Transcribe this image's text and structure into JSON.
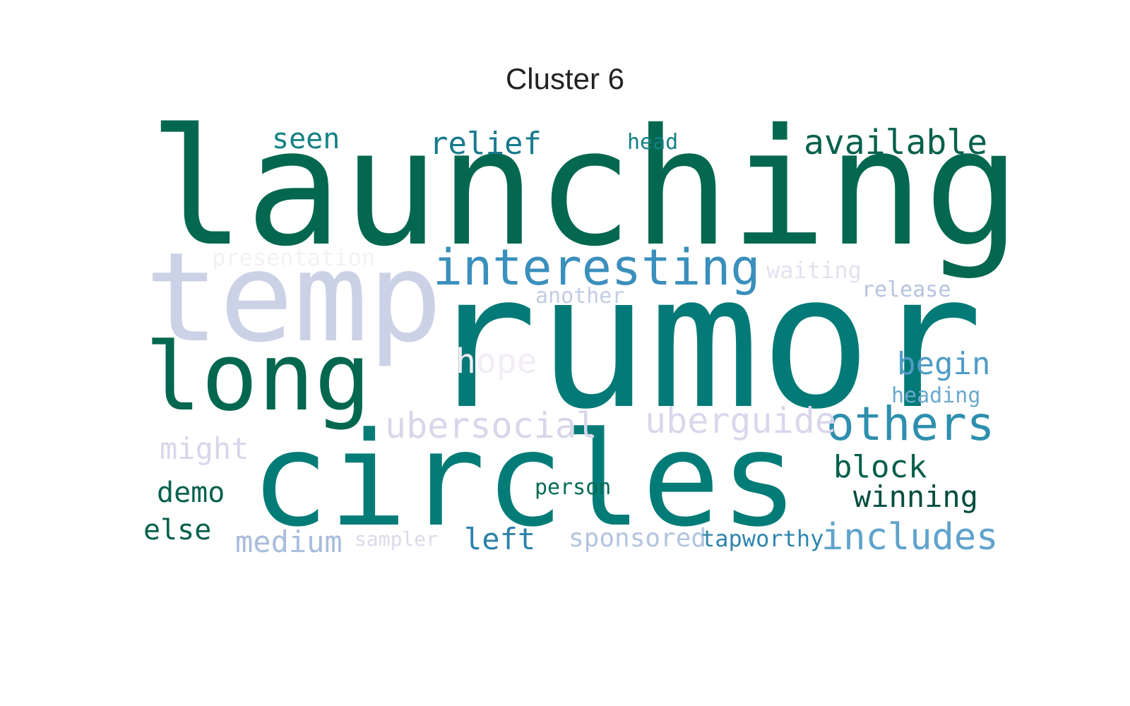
{
  "chart_data": {
    "type": "wordcloud",
    "title": "Cluster 6",
    "words": [
      {
        "text": "launching",
        "weight": 100,
        "color": "#03684f"
      },
      {
        "text": "rumor",
        "weight": 98,
        "color": "#037a77"
      },
      {
        "text": "circles",
        "weight": 80,
        "color": "#037c78"
      },
      {
        "text": "temp",
        "weight": 72,
        "color": "#ccd2e6"
      },
      {
        "text": "long",
        "weight": 56,
        "color": "#046750"
      },
      {
        "text": "interesting",
        "weight": 36,
        "color": "#3a8fbc"
      },
      {
        "text": "others",
        "weight": 32,
        "color": "#2e8fae"
      },
      {
        "text": "uberguide",
        "weight": 26,
        "color": "#dad7ec"
      },
      {
        "text": "ubersocial",
        "weight": 26,
        "color": "#d8d6ea"
      },
      {
        "text": "includes",
        "weight": 26,
        "color": "#5fa3cd"
      },
      {
        "text": "available",
        "weight": 25,
        "color": "#05604c"
      },
      {
        "text": "hope",
        "weight": 24,
        "color": "#f2ecf4"
      },
      {
        "text": "begin",
        "weight": 24,
        "color": "#4f9cc6"
      },
      {
        "text": "block",
        "weight": 24,
        "color": "#04604a"
      },
      {
        "text": "might",
        "weight": 23,
        "color": "#d8d6ea"
      },
      {
        "text": "relief",
        "weight": 23,
        "color": "#177a8e"
      },
      {
        "text": "winning",
        "weight": 23,
        "color": "#044d3e"
      },
      {
        "text": "left",
        "weight": 23,
        "color": "#2b81ac"
      },
      {
        "text": "medium",
        "weight": 22,
        "color": "#a8bcdc"
      },
      {
        "text": "demo",
        "weight": 22,
        "color": "#04614d"
      },
      {
        "text": "else",
        "weight": 22,
        "color": "#04604b"
      },
      {
        "text": "seen",
        "weight": 21,
        "color": "#138185"
      },
      {
        "text": "presentation",
        "weight": 20,
        "color": "#f5f0f6"
      },
      {
        "text": "sponsored",
        "weight": 20,
        "color": "#b3c4df"
      },
      {
        "text": "tapworthy",
        "weight": 19,
        "color": "#2f86ad"
      },
      {
        "text": "waiting",
        "weight": 19,
        "color": "#e4e1ef"
      },
      {
        "text": "another",
        "weight": 18,
        "color": "#c2cde4"
      },
      {
        "text": "release",
        "weight": 18,
        "color": "#b5c3df"
      },
      {
        "text": "heading",
        "weight": 18,
        "color": "#6aa8cf"
      },
      {
        "text": "person",
        "weight": 18,
        "color": "#046a55"
      },
      {
        "text": "sampler",
        "weight": 17,
        "color": "#dcdaec"
      },
      {
        "text": "head",
        "weight": 17,
        "color": "#138185"
      }
    ]
  }
}
